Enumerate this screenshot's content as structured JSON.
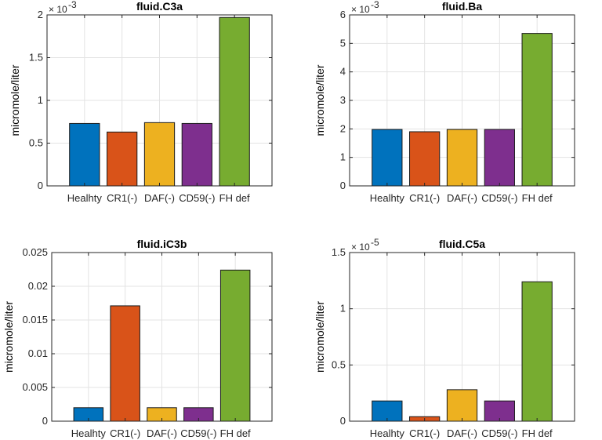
{
  "chart_data": [
    {
      "type": "bar",
      "title": "fluid.C3a",
      "ylabel": "micromole/liter",
      "exponent_base": "× 10",
      "exponent_power": "-3",
      "categories": [
        "Healhty",
        "CR1(-)",
        "DAF(-)",
        "CD59(-)",
        "FH def"
      ],
      "values": [
        0.73,
        0.63,
        0.74,
        0.73,
        1.97
      ],
      "ylim": [
        0,
        2
      ],
      "yticks": [
        0,
        0.5,
        1,
        1.5,
        2
      ],
      "ytick_labels": [
        "0",
        "0.5",
        "1",
        "1.5",
        "2"
      ],
      "grid": true
    },
    {
      "type": "bar",
      "title": "fluid.Ba",
      "ylabel": "micromole/liter",
      "exponent_base": "× 10",
      "exponent_power": "-3",
      "categories": [
        "Healhty",
        "CR1(-)",
        "DAF(-)",
        "CD59(-)",
        "FH def"
      ],
      "values": [
        1.98,
        1.9,
        1.98,
        1.98,
        5.35
      ],
      "ylim": [
        0,
        6
      ],
      "yticks": [
        0,
        1,
        2,
        3,
        4,
        5,
        6
      ],
      "ytick_labels": [
        "0",
        "1",
        "2",
        "3",
        "4",
        "5",
        "6"
      ],
      "grid": true
    },
    {
      "type": "bar",
      "title": "fluid.iC3b",
      "ylabel": "micromole/liter",
      "exponent_base": "",
      "exponent_power": "",
      "categories": [
        "Healhty",
        "CR1(-)",
        "DAF(-)",
        "CD59(-)",
        "FH def"
      ],
      "values": [
        0.002,
        0.0171,
        0.002,
        0.002,
        0.0224
      ],
      "ylim": [
        0,
        0.025
      ],
      "yticks": [
        0,
        0.005,
        0.01,
        0.015,
        0.02,
        0.025
      ],
      "ytick_labels": [
        "0",
        "0.005",
        "0.01",
        "0.015",
        "0.02",
        "0.025"
      ],
      "grid": true
    },
    {
      "type": "bar",
      "title": "fluid.C5a",
      "ylabel": "micromole/liter",
      "exponent_base": "× 10",
      "exponent_power": "-5",
      "categories": [
        "Healhty",
        "CR1(-)",
        "DAF(-)",
        "CD59(-)",
        "FH def"
      ],
      "values": [
        0.18,
        0.04,
        0.28,
        0.18,
        1.24
      ],
      "ylim": [
        0,
        1.5
      ],
      "yticks": [
        0,
        0.5,
        1,
        1.5
      ],
      "ytick_labels": [
        "0",
        "0.5",
        "1",
        "1.5"
      ],
      "grid": true
    }
  ],
  "colors": {
    "bars": [
      "#0072BD",
      "#D95319",
      "#EDB120",
      "#7E2F8E",
      "#77AC30"
    ],
    "grid": "#e3e3e3",
    "axis": "#262626"
  }
}
